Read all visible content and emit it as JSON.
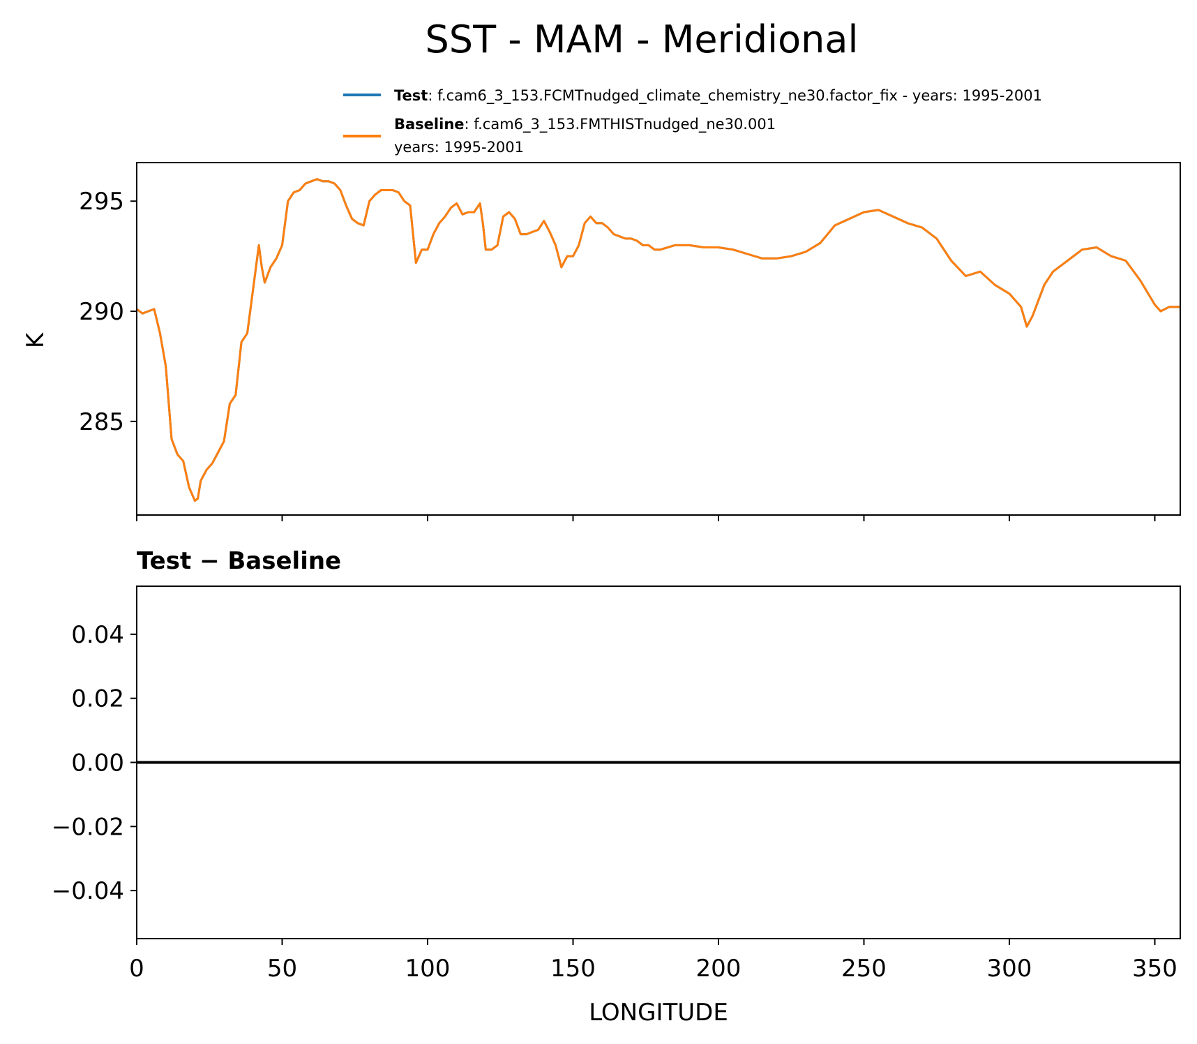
{
  "figure": {
    "title": "SST - MAM - Meridional",
    "legend": {
      "test_label": "Test",
      "test_text": ": f.cam6_3_153.FCMTnudged_climate_chemistry_ne30.factor_fix - years: 1995-2001",
      "baseline_label": "Baseline",
      "baseline_text": ": f.cam6_3_153.FMTHISTnudged_ne30.001",
      "baseline_text2": "years: 1995-2001"
    }
  },
  "chart_data": [
    {
      "type": "line",
      "title": "SST - MAM - Meridional",
      "ylabel": "K",
      "xlabel": "",
      "xlim": [
        0,
        358.75
      ],
      "ylim": [
        280.75,
        296.75
      ],
      "yticks": [
        285,
        290,
        295
      ],
      "ytick_labels": [
        "285",
        "290",
        "295"
      ],
      "xticks": [
        0,
        50,
        100,
        150,
        200,
        250,
        300,
        350
      ],
      "grid": false,
      "legend_position": "top-right",
      "colors": {
        "test": "#1f77b4",
        "baseline": "#ff7f0e"
      },
      "x": [
        0,
        2,
        4,
        6,
        8,
        10,
        12,
        14,
        16,
        18,
        20,
        21,
        22,
        24,
        26,
        28,
        30,
        32,
        34,
        36,
        38,
        40,
        42,
        43,
        44,
        46,
        48,
        50,
        52,
        54,
        56,
        58,
        60,
        62,
        64,
        66,
        68,
        70,
        72,
        74,
        76,
        78,
        80,
        82,
        84,
        86,
        88,
        90,
        92,
        94,
        96,
        98,
        100,
        102,
        104,
        106,
        108,
        110,
        112,
        114,
        116,
        118,
        119,
        120,
        122,
        124,
        126,
        128,
        130,
        132,
        134,
        136,
        138,
        140,
        142,
        144,
        146,
        148,
        150,
        152,
        154,
        156,
        158,
        160,
        162,
        164,
        166,
        168,
        170,
        172,
        174,
        176,
        178,
        180,
        185,
        190,
        195,
        200,
        205,
        210,
        215,
        220,
        225,
        230,
        235,
        240,
        245,
        250,
        255,
        260,
        265,
        270,
        275,
        280,
        285,
        290,
        295,
        300,
        304,
        306,
        308,
        310,
        312,
        315,
        320,
        325,
        330,
        335,
        340,
        345,
        350,
        352,
        355,
        358.75
      ],
      "series": [
        {
          "name": "Test",
          "values": [
            290.1,
            289.9,
            290.0,
            290.1,
            289.0,
            287.5,
            284.2,
            283.5,
            283.2,
            282.0,
            281.4,
            281.5,
            282.3,
            282.8,
            283.1,
            283.6,
            284.1,
            285.8,
            286.2,
            288.6,
            289.0,
            291.0,
            293.0,
            292.0,
            291.3,
            292.0,
            292.4,
            293.0,
            295.0,
            295.4,
            295.5,
            295.8,
            295.9,
            296.0,
            295.9,
            295.9,
            295.8,
            295.5,
            294.8,
            294.2,
            294.0,
            293.9,
            295.0,
            295.3,
            295.5,
            295.5,
            295.5,
            295.4,
            295.0,
            294.8,
            292.2,
            292.8,
            292.8,
            293.5,
            294.0,
            294.3,
            294.7,
            294.9,
            294.4,
            294.5,
            294.5,
            294.9,
            294.0,
            292.8,
            292.8,
            293.0,
            294.3,
            294.5,
            294.2,
            293.5,
            293.5,
            293.6,
            293.7,
            294.1,
            293.6,
            293.0,
            292.0,
            292.5,
            292.5,
            293.0,
            294.0,
            294.3,
            294.0,
            294.0,
            293.8,
            293.5,
            293.4,
            293.3,
            293.3,
            293.2,
            293.0,
            293.0,
            292.8,
            292.8,
            293.0,
            293.0,
            292.9,
            292.9,
            292.8,
            292.6,
            292.4,
            292.4,
            292.5,
            292.7,
            293.1,
            293.9,
            294.2,
            294.5,
            294.6,
            294.3,
            294.0,
            293.8,
            293.3,
            292.3,
            291.6,
            291.8,
            291.2,
            290.8,
            290.2,
            289.3,
            289.8,
            290.5,
            291.2,
            291.8,
            292.3,
            292.8,
            292.9,
            292.5,
            292.3,
            291.4,
            290.3,
            290.0,
            290.2,
            290.2
          ]
        },
        {
          "name": "Baseline",
          "values": [
            290.1,
            289.9,
            290.0,
            290.1,
            289.0,
            287.5,
            284.2,
            283.5,
            283.2,
            282.0,
            281.4,
            281.5,
            282.3,
            282.8,
            283.1,
            283.6,
            284.1,
            285.8,
            286.2,
            288.6,
            289.0,
            291.0,
            293.0,
            292.0,
            291.3,
            292.0,
            292.4,
            293.0,
            295.0,
            295.4,
            295.5,
            295.8,
            295.9,
            296.0,
            295.9,
            295.9,
            295.8,
            295.5,
            294.8,
            294.2,
            294.0,
            293.9,
            295.0,
            295.3,
            295.5,
            295.5,
            295.5,
            295.4,
            295.0,
            294.8,
            292.2,
            292.8,
            292.8,
            293.5,
            294.0,
            294.3,
            294.7,
            294.9,
            294.4,
            294.5,
            294.5,
            294.9,
            294.0,
            292.8,
            292.8,
            293.0,
            294.3,
            294.5,
            294.2,
            293.5,
            293.5,
            293.6,
            293.7,
            294.1,
            293.6,
            293.0,
            292.0,
            292.5,
            292.5,
            293.0,
            294.0,
            294.3,
            294.0,
            294.0,
            293.8,
            293.5,
            293.4,
            293.3,
            293.3,
            293.2,
            293.0,
            293.0,
            292.8,
            292.8,
            293.0,
            293.0,
            292.9,
            292.9,
            292.8,
            292.6,
            292.4,
            292.4,
            292.5,
            292.7,
            293.1,
            293.9,
            294.2,
            294.5,
            294.6,
            294.3,
            294.0,
            293.8,
            293.3,
            292.3,
            291.6,
            291.8,
            291.2,
            290.8,
            290.2,
            289.3,
            289.8,
            290.5,
            291.2,
            291.8,
            292.3,
            292.8,
            292.9,
            292.5,
            292.3,
            291.4,
            290.3,
            290.0,
            290.2,
            290.2
          ]
        }
      ]
    },
    {
      "type": "line",
      "title": "Test − Baseline",
      "xlabel": "LONGITUDE",
      "ylabel": "",
      "xlim": [
        0,
        358.75
      ],
      "ylim": [
        -0.055,
        0.055
      ],
      "yticks": [
        0.04,
        0.02,
        0.0,
        -0.02,
        -0.04
      ],
      "ytick_labels": [
        "0.04",
        "0.02",
        "0.00",
        "−0.02",
        "−0.04"
      ],
      "xticks": [
        0,
        50,
        100,
        150,
        200,
        250,
        300,
        350
      ],
      "xtick_labels": [
        "0",
        "50",
        "100",
        "150",
        "200",
        "250",
        "300",
        "350"
      ],
      "grid": false,
      "colors": {
        "diff": "#000000"
      },
      "x": [
        0,
        358.75
      ],
      "series": [
        {
          "values": [
            0,
            0
          ]
        }
      ]
    }
  ]
}
